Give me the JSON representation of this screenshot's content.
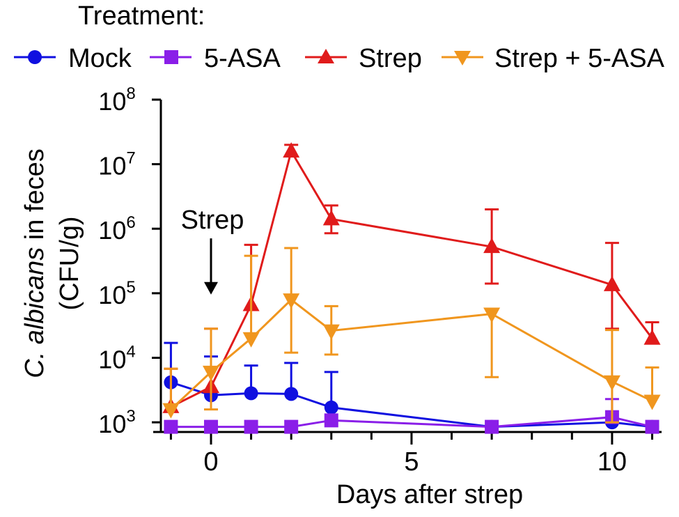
{
  "legend": {
    "title": "Treatment:"
  },
  "annotation": {
    "text": "Strep",
    "x": 0,
    "arrow_from_y": 5.85,
    "arrow_to_y": 4.98
  },
  "chart_data": {
    "type": "line",
    "title": "",
    "xlabel": "Days after strep",
    "ylabel_italic": "C. albicans",
    "ylabel_rest": " in feces",
    "ylabel_line2": "(CFU/g)",
    "yscale": "log10",
    "xlim": [
      -1.25,
      11.2
    ],
    "ylim_log10": [
      2.85,
      8.0
    ],
    "x_ticks": [
      0,
      5,
      10
    ],
    "x_tick_labels": [
      "0",
      "5",
      "10"
    ],
    "x_minor_ticks": [
      -1,
      1,
      2,
      3,
      4,
      6,
      7,
      8,
      9,
      11
    ],
    "y_ticks_log10": [
      3,
      4,
      5,
      6,
      7,
      8
    ],
    "y_tick_base": "10",
    "y_tick_exponents": [
      "3",
      "4",
      "5",
      "6",
      "7",
      "8"
    ],
    "legend_position": "top",
    "series": [
      {
        "name": "Mock",
        "color": "#1010e0",
        "marker": "circle",
        "x": [
          -1,
          0,
          1,
          2,
          3,
          7,
          10,
          11
        ],
        "y_log10": [
          3.62,
          3.42,
          3.45,
          3.44,
          3.23,
          2.93,
          3.0,
          2.93
        ],
        "err_upper_log10": [
          4.23,
          4.02,
          3.88,
          3.92,
          3.78,
          null,
          null,
          null
        ]
      },
      {
        "name": "5-ASA",
        "color": "#8a1ee8",
        "marker": "square",
        "x": [
          -1,
          0,
          1,
          2,
          3,
          7,
          10,
          11
        ],
        "y_log10": [
          2.93,
          2.93,
          2.93,
          2.93,
          3.03,
          2.93,
          3.08,
          2.93
        ],
        "err_upper_log10": [
          null,
          null,
          null,
          null,
          null,
          null,
          3.36,
          null
        ]
      },
      {
        "name": "Strep",
        "color": "#e01b1b",
        "marker": "triangle-up",
        "x": [
          -1,
          0,
          1,
          2,
          3,
          7,
          10,
          11
        ],
        "y_log10": [
          3.24,
          3.55,
          4.82,
          7.2,
          6.15,
          5.72,
          5.13,
          4.3
        ],
        "err_upper_log10": [
          3.83,
          4.45,
          5.75,
          7.3,
          6.36,
          6.3,
          5.78,
          4.55
        ],
        "err_lower_log10": [
          null,
          null,
          null,
          null,
          5.93,
          5.15,
          4.45,
          null
        ]
      },
      {
        "name": "Strep + 5-ASA",
        "color": "#f0961e",
        "marker": "triangle-down",
        "x": [
          -1,
          0,
          1,
          2,
          3,
          7,
          10,
          11
        ],
        "y_log10": [
          3.2,
          3.78,
          4.3,
          4.9,
          4.42,
          4.68,
          3.63,
          3.33
        ],
        "err_upper_log10": [
          3.83,
          4.45,
          5.58,
          5.7,
          4.8,
          null,
          4.43,
          3.85
        ],
        "err_lower_log10": [
          null,
          3.2,
          null,
          4.08,
          4.05,
          3.7,
          3.0,
          null
        ]
      }
    ]
  }
}
